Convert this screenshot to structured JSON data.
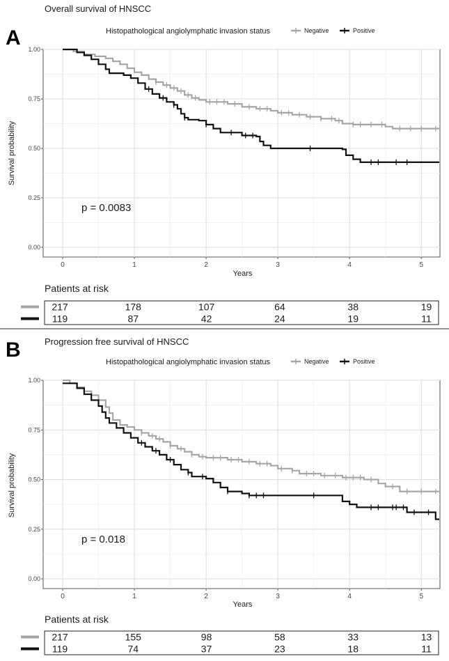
{
  "chart_data": [
    {
      "type": "line",
      "panel_label": "A",
      "title": "Overall survival of HNSCC",
      "legend_title": "Histopathological angiolymphatic invasion status",
      "legend_position": "top",
      "xlabel": "Years",
      "ylabel": "Survival probability",
      "xlim": [
        0,
        5.25
      ],
      "ylim": [
        0,
        1
      ],
      "x_ticks": [
        "0",
        "1",
        "2",
        "3",
        "4",
        "5"
      ],
      "y_ticks": [
        "0.00",
        "0.25",
        "0.50",
        "0.75",
        "1.00"
      ],
      "grid": true,
      "p_value": "p = 0.0083",
      "colors": {
        "Negative": "#a6a6a6",
        "Positive": "#111111"
      },
      "series": [
        {
          "name": "Negative",
          "step_points": [
            [
              0,
              1
            ],
            [
              0.15,
              0.99
            ],
            [
              0.3,
              0.975
            ],
            [
              0.45,
              0.965
            ],
            [
              0.6,
              0.955
            ],
            [
              0.7,
              0.94
            ],
            [
              0.8,
              0.925
            ],
            [
              0.9,
              0.905
            ],
            [
              1.0,
              0.885
            ],
            [
              1.1,
              0.87
            ],
            [
              1.2,
              0.85
            ],
            [
              1.3,
              0.835
            ],
            [
              1.4,
              0.82
            ],
            [
              1.5,
              0.805
            ],
            [
              1.6,
              0.79
            ],
            [
              1.7,
              0.77
            ],
            [
              1.8,
              0.755
            ],
            [
              1.9,
              0.745
            ],
            [
              2.0,
              0.735
            ],
            [
              2.3,
              0.725
            ],
            [
              2.5,
              0.71
            ],
            [
              2.7,
              0.7
            ],
            [
              2.9,
              0.69
            ],
            [
              3.0,
              0.68
            ],
            [
              3.2,
              0.67
            ],
            [
              3.4,
              0.66
            ],
            [
              3.6,
              0.65
            ],
            [
              3.8,
              0.64
            ],
            [
              3.9,
              0.625
            ],
            [
              4.05,
              0.62
            ],
            [
              4.5,
              0.61
            ],
            [
              4.6,
              0.6
            ],
            [
              5.25,
              0.6
            ]
          ],
          "censor_times": [
            1.3,
            1.45,
            1.55,
            1.65,
            1.75,
            1.85,
            2.05,
            2.15,
            2.25,
            2.4,
            2.6,
            2.75,
            2.85,
            3.05,
            3.15,
            3.3,
            3.45,
            3.6,
            3.75,
            3.85,
            4.05,
            4.15,
            4.3,
            4.45,
            4.7,
            4.85,
            5.0,
            5.2
          ]
        },
        {
          "name": "Positive",
          "step_points": [
            [
              0,
              1
            ],
            [
              0.2,
              0.985
            ],
            [
              0.3,
              0.97
            ],
            [
              0.4,
              0.95
            ],
            [
              0.5,
              0.925
            ],
            [
              0.6,
              0.9
            ],
            [
              0.65,
              0.88
            ],
            [
              0.85,
              0.87
            ],
            [
              0.95,
              0.855
            ],
            [
              1.05,
              0.83
            ],
            [
              1.15,
              0.8
            ],
            [
              1.25,
              0.775
            ],
            [
              1.35,
              0.755
            ],
            [
              1.45,
              0.735
            ],
            [
              1.55,
              0.72
            ],
            [
              1.6,
              0.7
            ],
            [
              1.65,
              0.675
            ],
            [
              1.7,
              0.655
            ],
            [
              1.75,
              0.645
            ],
            [
              1.9,
              0.64
            ],
            [
              2.0,
              0.62
            ],
            [
              2.1,
              0.6
            ],
            [
              2.2,
              0.58
            ],
            [
              2.5,
              0.565
            ],
            [
              2.7,
              0.56
            ],
            [
              2.75,
              0.535
            ],
            [
              2.8,
              0.515
            ],
            [
              2.9,
              0.5
            ],
            [
              3.9,
              0.495
            ],
            [
              3.95,
              0.465
            ],
            [
              4.05,
              0.445
            ],
            [
              4.15,
              0.43
            ],
            [
              5.25,
              0.43
            ]
          ],
          "censor_times": [
            1.2,
            1.4,
            1.55,
            1.7,
            2.0,
            2.35,
            2.55,
            2.65,
            3.45,
            4.3,
            4.4,
            4.65,
            4.8
          ]
        }
      ],
      "risk_table": {
        "title": "Patients at risk",
        "times": [
          0,
          1,
          2,
          3,
          4,
          5
        ],
        "rows": [
          {
            "name": "Negative",
            "values": [
              "217",
              "178",
              "107",
              "64",
              "38",
              "19"
            ]
          },
          {
            "name": "Positive",
            "values": [
              "119",
              "87",
              "42",
              "24",
              "19",
              "11"
            ]
          }
        ]
      }
    },
    {
      "type": "line",
      "panel_label": "B",
      "title": "Progression free survival of HNSCC",
      "legend_title": "Histopathological angiolymphatic invasion status",
      "legend_position": "top",
      "xlabel": "Years",
      "ylabel": "Survival probability",
      "xlim": [
        0,
        5.25
      ],
      "ylim": [
        0,
        1
      ],
      "x_ticks": [
        "0",
        "1",
        "2",
        "3",
        "4",
        "5"
      ],
      "y_ticks": [
        "0.00",
        "0.25",
        "0.50",
        "0.75",
        "1.00"
      ],
      "grid": true,
      "p_value": "p = 0.018",
      "colors": {
        "Negative": "#a6a6a6",
        "Positive": "#111111"
      },
      "series": [
        {
          "name": "Negative",
          "step_points": [
            [
              0,
              1
            ],
            [
              0.1,
              0.985
            ],
            [
              0.2,
              0.965
            ],
            [
              0.3,
              0.945
            ],
            [
              0.4,
              0.925
            ],
            [
              0.5,
              0.9
            ],
            [
              0.6,
              0.865
            ],
            [
              0.65,
              0.835
            ],
            [
              0.7,
              0.8
            ],
            [
              0.8,
              0.775
            ],
            [
              0.9,
              0.765
            ],
            [
              1.0,
              0.75
            ],
            [
              1.1,
              0.735
            ],
            [
              1.2,
              0.72
            ],
            [
              1.3,
              0.705
            ],
            [
              1.4,
              0.69
            ],
            [
              1.5,
              0.67
            ],
            [
              1.6,
              0.655
            ],
            [
              1.7,
              0.64
            ],
            [
              1.8,
              0.625
            ],
            [
              1.9,
              0.615
            ],
            [
              2.0,
              0.61
            ],
            [
              2.3,
              0.6
            ],
            [
              2.5,
              0.59
            ],
            [
              2.7,
              0.58
            ],
            [
              2.9,
              0.57
            ],
            [
              3.0,
              0.555
            ],
            [
              3.2,
              0.545
            ],
            [
              3.3,
              0.53
            ],
            [
              3.6,
              0.52
            ],
            [
              3.9,
              0.51
            ],
            [
              4.2,
              0.5
            ],
            [
              4.4,
              0.48
            ],
            [
              4.5,
              0.465
            ],
            [
              4.7,
              0.44
            ],
            [
              5.25,
              0.44
            ]
          ],
          "censor_times": [
            1.1,
            1.25,
            1.35,
            1.5,
            1.65,
            1.8,
            1.95,
            2.1,
            2.2,
            2.35,
            2.45,
            2.6,
            2.75,
            2.85,
            3.05,
            3.2,
            3.4,
            3.5,
            3.65,
            3.8,
            3.95,
            4.05,
            4.15,
            4.3,
            4.6,
            4.8,
            5.0,
            5.2
          ]
        },
        {
          "name": "Positive",
          "step_points": [
            [
              0,
              0.985
            ],
            [
              0.2,
              0.96
            ],
            [
              0.3,
              0.93
            ],
            [
              0.4,
              0.9
            ],
            [
              0.5,
              0.87
            ],
            [
              0.55,
              0.84
            ],
            [
              0.6,
              0.81
            ],
            [
              0.65,
              0.785
            ],
            [
              0.75,
              0.76
            ],
            [
              0.85,
              0.735
            ],
            [
              0.95,
              0.71
            ],
            [
              1.05,
              0.685
            ],
            [
              1.15,
              0.665
            ],
            [
              1.25,
              0.645
            ],
            [
              1.35,
              0.625
            ],
            [
              1.45,
              0.6
            ],
            [
              1.55,
              0.575
            ],
            [
              1.65,
              0.55
            ],
            [
              1.75,
              0.535
            ],
            [
              1.8,
              0.515
            ],
            [
              2.0,
              0.505
            ],
            [
              2.1,
              0.485
            ],
            [
              2.2,
              0.46
            ],
            [
              2.3,
              0.44
            ],
            [
              2.5,
              0.43
            ],
            [
              2.6,
              0.42
            ],
            [
              3.9,
              0.39
            ],
            [
              4.0,
              0.375
            ],
            [
              4.1,
              0.36
            ],
            [
              4.8,
              0.335
            ],
            [
              5.2,
              0.3
            ],
            [
              5.25,
              0.3
            ]
          ],
          "censor_times": [
            1.1,
            1.3,
            1.5,
            1.75,
            1.95,
            2.3,
            2.6,
            2.7,
            2.8,
            3.5,
            4.3,
            4.4,
            4.6,
            4.65,
            4.75,
            4.9,
            5.1
          ]
        }
      ],
      "risk_table": {
        "title": "Patients at risk",
        "times": [
          0,
          1,
          2,
          3,
          4,
          5
        ],
        "rows": [
          {
            "name": "Negative",
            "values": [
              "217",
              "155",
              "98",
              "58",
              "33",
              "13"
            ]
          },
          {
            "name": "Positive",
            "values": [
              "119",
              "74",
              "37",
              "23",
              "18",
              "11"
            ]
          }
        ]
      }
    }
  ]
}
